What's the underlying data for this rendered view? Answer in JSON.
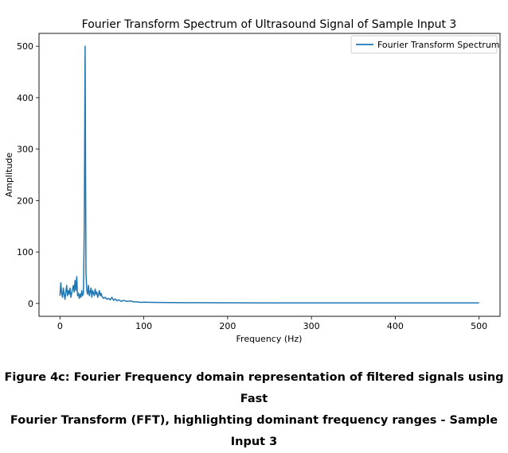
{
  "chart_data": {
    "type": "line",
    "title": "Fourier Transform Spectrum of Ultrasound Signal of Sample Input 3",
    "xlabel": "Frequency (Hz)",
    "ylabel": "Amplitude",
    "xlim": [
      -25,
      525
    ],
    "ylim": [
      -25,
      525
    ],
    "xticks": [
      0,
      100,
      200,
      300,
      400,
      500
    ],
    "yticks": [
      0,
      100,
      200,
      300,
      400,
      500
    ],
    "grid": false,
    "legend": "top-right",
    "series": [
      {
        "name": "Fourier Transform Spectrum",
        "color": "#1f77b4",
        "x": [
          0,
          1,
          2,
          3,
          4,
          5,
          6,
          7,
          8,
          9,
          10,
          11,
          12,
          13,
          14,
          15,
          16,
          17,
          18,
          19,
          20,
          21,
          22,
          23,
          24,
          25,
          26,
          27,
          28,
          29,
          30,
          31,
          32,
          33,
          34,
          35,
          36,
          37,
          38,
          39,
          40,
          41,
          42,
          43,
          44,
          45,
          46,
          47,
          48,
          49,
          50,
          52,
          54,
          56,
          58,
          60,
          62,
          64,
          66,
          68,
          70,
          73,
          76,
          80,
          84,
          88,
          92,
          96,
          100,
          110,
          120,
          150,
          200,
          250,
          300,
          350,
          400,
          450,
          500
        ],
        "y": [
          15,
          40,
          20,
          12,
          30,
          18,
          8,
          22,
          35,
          15,
          25,
          18,
          30,
          12,
          20,
          28,
          35,
          22,
          45,
          25,
          52,
          15,
          20,
          10,
          18,
          12,
          25,
          15,
          20,
          150,
          500,
          60,
          25,
          18,
          35,
          15,
          22,
          30,
          12,
          25,
          20,
          15,
          28,
          18,
          22,
          12,
          18,
          25,
          15,
          20,
          14,
          10,
          12,
          8,
          10,
          7,
          12,
          6,
          9,
          5,
          7,
          4,
          6,
          4,
          5,
          3,
          3,
          2,
          2.5,
          2,
          1.8,
          1.5,
          1.2,
          1.1,
          1,
          1,
          1,
          1,
          1
        ]
      }
    ]
  },
  "caption": {
    "line1": "Figure 4c: Fourier Frequency domain representation of filtered signals using Fast",
    "line2": "Fourier Transform (FFT), highlighting dominant frequency ranges - Sample Input 3"
  }
}
